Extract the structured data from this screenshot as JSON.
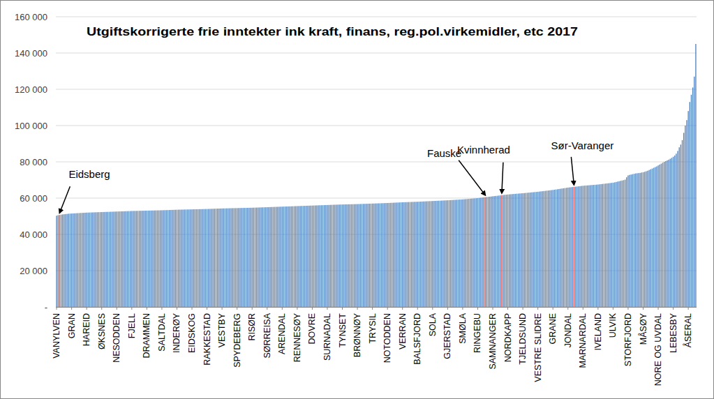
{
  "chart_data": {
    "type": "bar",
    "title": "Utgiftskorrigerte frie inntekter ink kraft, finans, reg.pol.virkemidler, etc 2017",
    "ylim": [
      0,
      160000
    ],
    "yticks": [
      {
        "value": 0,
        "label": "-"
      },
      {
        "value": 20000,
        "label": "20 000"
      },
      {
        "value": 40000,
        "label": "40 000"
      },
      {
        "value": 60000,
        "label": "60 000"
      },
      {
        "value": 80000,
        "label": "80 000"
      },
      {
        "value": 100000,
        "label": "100 000"
      },
      {
        "value": 120000,
        "label": "120 000"
      },
      {
        "value": 140000,
        "label": "140 000"
      },
      {
        "value": 160000,
        "label": "160 000"
      }
    ],
    "grid": true,
    "annotations": [
      {
        "text": "Eidsberg",
        "x": 2
      },
      {
        "text": "Fauske",
        "x": 285
      },
      {
        "text": "Kvinnherad",
        "x": 296
      },
      {
        "text": "Sør-Varanger",
        "x": 344
      }
    ],
    "categories": [
      "VANYLVEN",
      null,
      null,
      null,
      null,
      null,
      null,
      null,
      null,
      null,
      "GRAN",
      null,
      null,
      null,
      null,
      null,
      null,
      null,
      null,
      null,
      "HAREID",
      null,
      null,
      null,
      null,
      null,
      null,
      null,
      null,
      null,
      "ØKSNES",
      null,
      null,
      null,
      null,
      null,
      null,
      null,
      null,
      null,
      "NESODDEN",
      null,
      null,
      null,
      null,
      null,
      null,
      null,
      null,
      null,
      "FJELL",
      null,
      null,
      null,
      null,
      null,
      null,
      null,
      null,
      null,
      "DRAMMEN",
      null,
      null,
      null,
      null,
      null,
      null,
      null,
      null,
      null,
      "SALTDAL",
      null,
      null,
      null,
      null,
      null,
      null,
      null,
      null,
      null,
      "INDERØY",
      null,
      null,
      null,
      null,
      null,
      null,
      null,
      null,
      null,
      "EIDSKOG",
      null,
      null,
      null,
      null,
      null,
      null,
      null,
      null,
      null,
      "RAKKESTAD",
      null,
      null,
      null,
      null,
      null,
      null,
      null,
      null,
      null,
      "VESTBY",
      null,
      null,
      null,
      null,
      null,
      null,
      null,
      null,
      null,
      "SPYDEBERG",
      null,
      null,
      null,
      null,
      null,
      null,
      null,
      null,
      null,
      "RISØR",
      null,
      null,
      null,
      null,
      null,
      null,
      null,
      null,
      null,
      "SØRREISA",
      null,
      null,
      null,
      null,
      null,
      null,
      null,
      null,
      null,
      "ARENDAL",
      null,
      null,
      null,
      null,
      null,
      null,
      null,
      null,
      null,
      "RENNESØY",
      null,
      null,
      null,
      null,
      null,
      null,
      null,
      null,
      null,
      "DOVRE",
      null,
      null,
      null,
      null,
      null,
      null,
      null,
      null,
      null,
      "SURNADAL",
      null,
      null,
      null,
      null,
      null,
      null,
      null,
      null,
      null,
      "TYNSET",
      null,
      null,
      null,
      null,
      null,
      null,
      null,
      null,
      null,
      "BRØNNØY",
      null,
      null,
      null,
      null,
      null,
      null,
      null,
      null,
      null,
      "TRYSIL",
      null,
      null,
      null,
      null,
      null,
      null,
      null,
      null,
      null,
      "NOTODDEN",
      null,
      null,
      null,
      null,
      null,
      null,
      null,
      null,
      null,
      "VERRAN",
      null,
      null,
      null,
      null,
      null,
      null,
      null,
      null,
      null,
      "BALSFJORD",
      null,
      null,
      null,
      null,
      null,
      null,
      null,
      null,
      null,
      "SOLA",
      null,
      null,
      null,
      null,
      null,
      null,
      null,
      null,
      null,
      "GJERSTAD",
      null,
      null,
      null,
      null,
      null,
      null,
      null,
      null,
      null,
      "SMØLA",
      null,
      null,
      null,
      null,
      null,
      null,
      null,
      null,
      null,
      "RINGEBU",
      null,
      null,
      null,
      null,
      null,
      null,
      null,
      null,
      null,
      "SAMNANGER",
      null,
      null,
      null,
      null,
      null,
      null,
      null,
      null,
      null,
      "NORDKAPP",
      null,
      null,
      null,
      null,
      null,
      null,
      null,
      null,
      null,
      "TJELDSUND",
      null,
      null,
      null,
      null,
      null,
      null,
      null,
      null,
      null,
      "VESTRE SLIDRE",
      null,
      null,
      null,
      null,
      null,
      null,
      null,
      null,
      null,
      "GRANE",
      null,
      null,
      null,
      null,
      null,
      null,
      null,
      null,
      null,
      "JONDAL",
      null,
      null,
      null,
      null,
      null,
      null,
      null,
      null,
      null,
      "MARNARDAL",
      null,
      null,
      null,
      null,
      null,
      null,
      null,
      null,
      null,
      "IVELAND",
      null,
      null,
      null,
      null,
      null,
      null,
      null,
      null,
      null,
      "ULVIK",
      null,
      null,
      null,
      null,
      null,
      null,
      null,
      null,
      null,
      "STORFJORD",
      null,
      null,
      null,
      null,
      null,
      null,
      null,
      null,
      null,
      "MÅSØY",
      null,
      null,
      null,
      null,
      null,
      null,
      null,
      null,
      null,
      "NORE OG UVDAL",
      null,
      null,
      null,
      null,
      null,
      null,
      null,
      null,
      null,
      "LEBESBY",
      null,
      null,
      null,
      null,
      null,
      null,
      null,
      null,
      null,
      "ÅSERAL",
      null,
      null,
      null,
      null,
      null
    ],
    "values": [
      50300,
      50600,
      50700,
      50900,
      51000,
      51100,
      51200,
      51300,
      51400,
      51450,
      51500,
      51550,
      51600,
      51650,
      51700,
      51750,
      51800,
      51850,
      51900,
      51950,
      52000,
      52030,
      52060,
      52090,
      52120,
      52150,
      52180,
      52210,
      52240,
      52270,
      52300,
      52330,
      52360,
      52390,
      52420,
      52450,
      52480,
      52510,
      52540,
      52570,
      52600,
      52630,
      52660,
      52690,
      52720,
      52750,
      52780,
      52810,
      52840,
      52870,
      52900,
      52920,
      52940,
      52960,
      52980,
      53000,
      53020,
      53040,
      53060,
      53080,
      53100,
      53120,
      53140,
      53160,
      53180,
      53200,
      53220,
      53240,
      53260,
      53280,
      53300,
      53330,
      53360,
      53390,
      53420,
      53450,
      53480,
      53510,
      53540,
      53570,
      53600,
      53620,
      53640,
      53660,
      53680,
      53700,
      53720,
      53740,
      53760,
      53780,
      53800,
      53820,
      53840,
      53860,
      53880,
      53900,
      53920,
      53940,
      53960,
      53980,
      54000,
      54030,
      54060,
      54090,
      54120,
      54150,
      54180,
      54210,
      54240,
      54270,
      54300,
      54320,
      54340,
      54360,
      54380,
      54400,
      54420,
      54440,
      54460,
      54480,
      54500,
      54520,
      54540,
      54560,
      54580,
      54600,
      54620,
      54640,
      54660,
      54680,
      54700,
      54730,
      54760,
      54790,
      54820,
      54850,
      54880,
      54910,
      54940,
      54970,
      55000,
      55030,
      55060,
      55090,
      55120,
      55150,
      55180,
      55210,
      55240,
      55270,
      55300,
      55330,
      55360,
      55390,
      55420,
      55450,
      55480,
      55510,
      55540,
      55570,
      55600,
      55630,
      55660,
      55690,
      55720,
      55750,
      55780,
      55810,
      55840,
      55870,
      55900,
      55930,
      55960,
      55990,
      56020,
      56050,
      56080,
      56110,
      56140,
      56170,
      56200,
      56230,
      56260,
      56290,
      56320,
      56350,
      56380,
      56410,
      56440,
      56470,
      56500,
      56520,
      56540,
      56560,
      56580,
      56600,
      56620,
      56640,
      56660,
      56680,
      56700,
      56730,
      56760,
      56790,
      56820,
      56850,
      56880,
      56910,
      56940,
      56970,
      57000,
      57030,
      57060,
      57090,
      57120,
      57150,
      57180,
      57210,
      57240,
      57270,
      57300,
      57340,
      57380,
      57420,
      57460,
      57500,
      57540,
      57580,
      57620,
      57660,
      57700,
      57730,
      57760,
      57790,
      57820,
      57850,
      57880,
      57910,
      57940,
      57970,
      58000,
      58040,
      58080,
      58120,
      58160,
      58200,
      58240,
      58280,
      58320,
      58360,
      58400,
      58440,
      58480,
      58520,
      58560,
      58600,
      58640,
      58680,
      58720,
      58760,
      58800,
      58850,
      58900,
      58950,
      59000,
      59050,
      59100,
      59150,
      59200,
      59250,
      59300,
      59370,
      59440,
      59510,
      59580,
      59650,
      59720,
      59790,
      59860,
      59930,
      60000,
      60100,
      60200,
      60300,
      60400,
      60500,
      60600,
      60700,
      60800,
      60900,
      61000,
      61100,
      61200,
      61300,
      61400,
      61500,
      61600,
      61700,
      61800,
      61900,
      62000,
      62070,
      62140,
      62210,
      62280,
      62350,
      62420,
      62490,
      62560,
      62630,
      62700,
      62780,
      62860,
      62940,
      63020,
      63100,
      63180,
      63260,
      63340,
      63420,
      63500,
      63600,
      63700,
      63800,
      63900,
      64000,
      64100,
      64200,
      64300,
      64400,
      64500,
      64630,
      64760,
      64890,
      65020,
      65150,
      65280,
      65410,
      65540,
      65670,
      65800,
      65900,
      66000,
      66100,
      66200,
      66300,
      66400,
      66500,
      66600,
      66700,
      66800,
      66870,
      66940,
      67010,
      67080,
      67150,
      67220,
      67290,
      67360,
      67430,
      67500,
      67600,
      67700,
      67800,
      67900,
      68000,
      68100,
      68200,
      68300,
      68400,
      68500,
      68700,
      68900,
      69100,
      69300,
      69500,
      69700,
      69900,
      70200,
      71500,
      72500,
      72800,
      73000,
      73200,
      73400,
      73600,
      73700,
      73800,
      73900,
      74100,
      74300,
      74500,
      74800,
      75100,
      75500,
      75900,
      76300,
      76700,
      77100,
      77500,
      78000,
      78500,
      79000,
      79500,
      80000,
      80400,
      80800,
      81200,
      81700,
      82200,
      82800,
      83500,
      84500,
      86000,
      88000,
      89500,
      92000,
      96000,
      100000,
      103000,
      108000,
      113000,
      117000,
      121000,
      127000,
      145000
    ],
    "colors": [
      "#4f81bd",
      "#4f81bd",
      "#e8453c",
      "#4f81bd",
      "#4f81bd",
      "#4f81bd",
      "#4f81bd",
      "#4f81bd",
      "#4f81bd",
      "#4f81bd",
      "#4f81bd",
      "#4f81bd",
      "#4f81bd",
      "#4f81bd",
      "#4f81bd",
      "#4f81bd",
      "#4f81bd",
      "#4f81bd",
      "#4f81bd",
      "#4f81bd",
      "#4f81bd",
      "#4f81bd",
      "#4f81bd",
      "#4f81bd",
      "#4f81bd",
      "#4f81bd",
      "#4f81bd",
      "#4f81bd",
      "#4f81bd",
      "#4f81bd",
      "#4f81bd",
      "#4f81bd",
      "#4f81bd",
      "#4f81bd",
      "#4f81bd",
      "#4f81bd",
      "#4f81bd",
      "#4f81bd",
      "#4f81bd",
      "#4f81bd",
      "#4f81bd",
      "#4f81bd",
      "#4f81bd",
      "#4f81bd",
      "#4f81bd",
      "#4f81bd",
      "#4f81bd",
      "#4f81bd",
      "#4f81bd",
      "#4f81bd",
      "#4f81bd",
      "#4f81bd",
      "#4f81bd",
      "#4f81bd",
      "#4f81bd",
      "#4f81bd",
      "#4f81bd",
      "#4f81bd",
      "#4f81bd",
      "#4f81bd",
      "#4f81bd",
      "#4f81bd",
      "#4f81bd",
      "#4f81bd",
      "#4f81bd",
      "#4f81bd",
      "#4f81bd",
      "#4f81bd",
      "#4f81bd",
      "#4f81bd",
      "#4f81bd",
      "#4f81bd",
      "#4f81bd",
      "#4f81bd",
      "#4f81bd",
      "#4f81bd",
      "#4f81bd",
      "#4f81bd",
      "#4f81bd",
      "#4f81bd",
      "#4f81bd",
      "#4f81bd",
      "#4f81bd",
      "#4f81bd",
      "#4f81bd",
      "#4f81bd",
      "#4f81bd",
      "#4f81bd",
      "#4f81bd",
      "#4f81bd",
      "#4f81bd",
      "#4f81bd",
      "#4f81bd",
      "#4f81bd",
      "#4f81bd",
      "#4f81bd",
      "#4f81bd",
      "#4f81bd",
      "#4f81bd",
      "#4f81bd",
      "#4f81bd",
      "#4f81bd",
      "#4f81bd",
      "#4f81bd",
      "#4f81bd",
      "#4f81bd",
      "#4f81bd",
      "#4f81bd",
      "#4f81bd",
      "#4f81bd",
      "#4f81bd",
      "#4f81bd",
      "#4f81bd",
      "#4f81bd",
      "#4f81bd",
      "#4f81bd",
      "#4f81bd",
      "#4f81bd",
      "#4f81bd",
      "#4f81bd",
      "#4f81bd",
      "#4f81bd",
      "#4f81bd",
      "#4f81bd",
      "#4f81bd",
      "#4f81bd",
      "#4f81bd",
      "#4f81bd",
      "#4f81bd",
      "#4f81bd",
      "#4f81bd",
      "#4f81bd",
      "#4f81bd",
      "#4f81bd",
      "#4f81bd",
      "#4f81bd",
      "#4f81bd",
      "#4f81bd",
      "#4f81bd",
      "#4f81bd",
      "#4f81bd",
      "#4f81bd",
      "#4f81bd",
      "#4f81bd",
      "#4f81bd",
      "#4f81bd",
      "#4f81bd",
      "#4f81bd",
      "#4f81bd",
      "#4f81bd",
      "#4f81bd",
      "#4f81bd",
      "#4f81bd",
      "#4f81bd",
      "#4f81bd",
      "#4f81bd",
      "#4f81bd",
      "#4f81bd",
      "#4f81bd",
      "#4f81bd",
      "#4f81bd",
      "#4f81bd",
      "#4f81bd",
      "#4f81bd",
      "#4f81bd",
      "#4f81bd",
      "#4f81bd",
      "#4f81bd",
      "#4f81bd",
      "#4f81bd",
      "#4f81bd",
      "#4f81bd",
      "#4f81bd",
      "#4f81bd",
      "#4f81bd",
      "#4f81bd",
      "#4f81bd",
      "#4f81bd",
      "#4f81bd",
      "#4f81bd",
      "#4f81bd",
      "#4f81bd",
      "#4f81bd",
      "#4f81bd",
      "#4f81bd",
      "#4f81bd",
      "#4f81bd",
      "#4f81bd",
      "#4f81bd",
      "#4f81bd",
      "#4f81bd",
      "#4f81bd",
      "#4f81bd",
      "#4f81bd",
      "#4f81bd",
      "#4f81bd",
      "#4f81bd",
      "#4f81bd",
      "#4f81bd",
      "#4f81bd",
      "#4f81bd",
      "#4f81bd",
      "#4f81bd",
      "#4f81bd",
      "#4f81bd",
      "#4f81bd",
      "#4f81bd",
      "#4f81bd",
      "#4f81bd",
      "#4f81bd",
      "#4f81bd",
      "#4f81bd",
      "#4f81bd",
      "#4f81bd",
      "#4f81bd",
      "#4f81bd",
      "#4f81bd",
      "#4f81bd",
      "#4f81bd",
      "#4f81bd",
      "#4f81bd",
      "#4f81bd",
      "#4f81bd",
      "#4f81bd",
      "#4f81bd",
      "#4f81bd",
      "#4f81bd",
      "#4f81bd",
      "#4f81bd",
      "#4f81bd",
      "#4f81bd",
      "#4f81bd",
      "#4f81bd",
      "#4f81bd",
      "#4f81bd",
      "#4f81bd",
      "#4f81bd",
      "#4f81bd",
      "#4f81bd",
      "#4f81bd",
      "#4f81bd",
      "#4f81bd",
      "#4f81bd",
      "#4f81bd",
      "#4f81bd",
      "#4f81bd",
      "#4f81bd",
      "#4f81bd",
      "#4f81bd",
      "#4f81bd",
      "#4f81bd",
      "#4f81bd",
      "#4f81bd",
      "#4f81bd",
      "#4f81bd",
      "#4f81bd",
      "#4f81bd",
      "#4f81bd",
      "#4f81bd",
      "#4f81bd",
      "#4f81bd",
      "#4f81bd",
      "#4f81bd",
      "#4f81bd",
      "#4f81bd",
      "#4f81bd",
      "#4f81bd",
      "#4f81bd",
      "#4f81bd",
      "#4f81bd",
      "#4f81bd",
      "#4f81bd",
      "#4f81bd",
      "#4f81bd",
      "#4f81bd",
      "#4f81bd",
      "#4f81bd",
      "#4f81bd",
      "#4f81bd",
      "#4f81bd",
      "#4f81bd",
      "#4f81bd",
      "#4f81bd",
      "#4f81bd",
      "#4f81bd",
      "#e8453c",
      "#4f81bd",
      "#4f81bd",
      "#4f81bd",
      "#4f81bd",
      "#4f81bd",
      "#4f81bd",
      "#4f81bd",
      "#4f81bd",
      "#4f81bd",
      "#4f81bd",
      "#e8453c",
      "#4f81bd",
      "#4f81bd",
      "#4f81bd",
      "#4f81bd",
      "#4f81bd",
      "#4f81bd",
      "#4f81bd",
      "#4f81bd",
      "#4f81bd",
      "#4f81bd",
      "#4f81bd",
      "#4f81bd",
      "#4f81bd",
      "#4f81bd",
      "#4f81bd",
      "#4f81bd",
      "#4f81bd",
      "#4f81bd",
      "#4f81bd",
      "#4f81bd",
      "#4f81bd",
      "#4f81bd",
      "#4f81bd",
      "#4f81bd",
      "#4f81bd",
      "#4f81bd",
      "#4f81bd",
      "#4f81bd",
      "#4f81bd",
      "#4f81bd",
      "#4f81bd",
      "#4f81bd",
      "#4f81bd",
      "#4f81bd",
      "#4f81bd",
      "#4f81bd",
      "#4f81bd",
      "#4f81bd",
      "#4f81bd",
      "#4f81bd",
      "#4f81bd",
      "#4f81bd",
      "#4f81bd",
      "#4f81bd",
      "#4f81bd",
      "#4f81bd",
      "#4f81bd",
      "#e8453c",
      "#4f81bd",
      "#4f81bd",
      "#4f81bd",
      "#4f81bd",
      "#4f81bd",
      "#4f81bd",
      "#4f81bd",
      "#4f81bd",
      "#4f81bd",
      "#4f81bd",
      "#4f81bd",
      "#4f81bd",
      "#4f81bd",
      "#4f81bd",
      "#4f81bd",
      "#4f81bd",
      "#4f81bd",
      "#4f81bd",
      "#4f81bd",
      "#4f81bd",
      "#4f81bd",
      "#4f81bd",
      "#4f81bd",
      "#4f81bd",
      "#4f81bd",
      "#4f81bd",
      "#4f81bd",
      "#4f81bd",
      "#4f81bd",
      "#4f81bd",
      "#4f81bd",
      "#4f81bd",
      "#4f81bd",
      "#4f81bd",
      "#4f81bd",
      "#4f81bd",
      "#4f81bd",
      "#4f81bd",
      "#4f81bd",
      "#4f81bd",
      "#4f81bd",
      "#4f81bd",
      "#4f81bd",
      "#4f81bd",
      "#4f81bd",
      "#4f81bd",
      "#4f81bd",
      "#4f81bd",
      "#4f81bd",
      "#4f81bd",
      "#4f81bd",
      "#4f81bd",
      "#4f81bd",
      "#4f81bd",
      "#4f81bd",
      "#4f81bd",
      "#4f81bd",
      "#4f81bd",
      "#4f81bd",
      "#4f81bd",
      "#4f81bd",
      "#4f81bd",
      "#4f81bd",
      "#4f81bd",
      "#4f81bd",
      "#4f81bd",
      "#4f81bd",
      "#4f81bd",
      "#4f81bd",
      "#4f81bd",
      "#4f81bd",
      "#4f81bd",
      "#4f81bd",
      "#4f81bd",
      "#4f81bd",
      "#4f81bd",
      "#4f81bd",
      "#4f81bd",
      "#4f81bd",
      "#4f81bd",
      "#4f81bd"
    ]
  }
}
